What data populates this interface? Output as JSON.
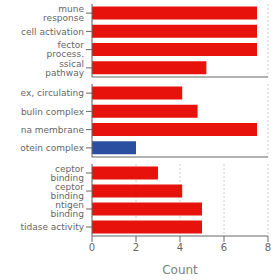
{
  "chart_data": [
    {
      "type": "bar",
      "orientation": "horizontal",
      "categories": [
        "mune response",
        "cell activation",
        "fector process.",
        "ssical pathway"
      ],
      "values": [
        7.5,
        7.5,
        7.5,
        5.2
      ],
      "colors": [
        "#e8120c",
        "#e8120c",
        "#e8120c",
        "#e8120c"
      ],
      "xlim": [
        0,
        8
      ],
      "xticks": [
        0,
        2,
        4,
        6,
        8
      ],
      "grid": true,
      "tick_labels": "y"
    },
    {
      "type": "bar",
      "orientation": "horizontal",
      "categories": [
        "ex, circulating",
        "bulin complex",
        "na membrane",
        "otein complex"
      ],
      "values": [
        4.1,
        4.8,
        7.5,
        2.0
      ],
      "colors": [
        "#e8120c",
        "#e8120c",
        "#e8120c",
        "#2b4fa0"
      ],
      "xlim": [
        0,
        8
      ],
      "xticks": [
        0,
        2,
        4,
        6,
        8
      ],
      "grid": true,
      "tick_labels": "y"
    },
    {
      "type": "bar",
      "orientation": "horizontal",
      "categories": [
        "ceptor binding",
        "ceptor binding",
        "ntigen binding",
        "tidase activity"
      ],
      "values": [
        3.0,
        4.1,
        5.0,
        5.0
      ],
      "colors": [
        "#e8120c",
        "#e8120c",
        "#e8120c",
        "#e8120c"
      ],
      "xlim": [
        0,
        8
      ],
      "xticks": [
        0,
        2,
        4,
        6,
        8
      ],
      "grid": true,
      "xlabel": "Count"
    }
  ]
}
